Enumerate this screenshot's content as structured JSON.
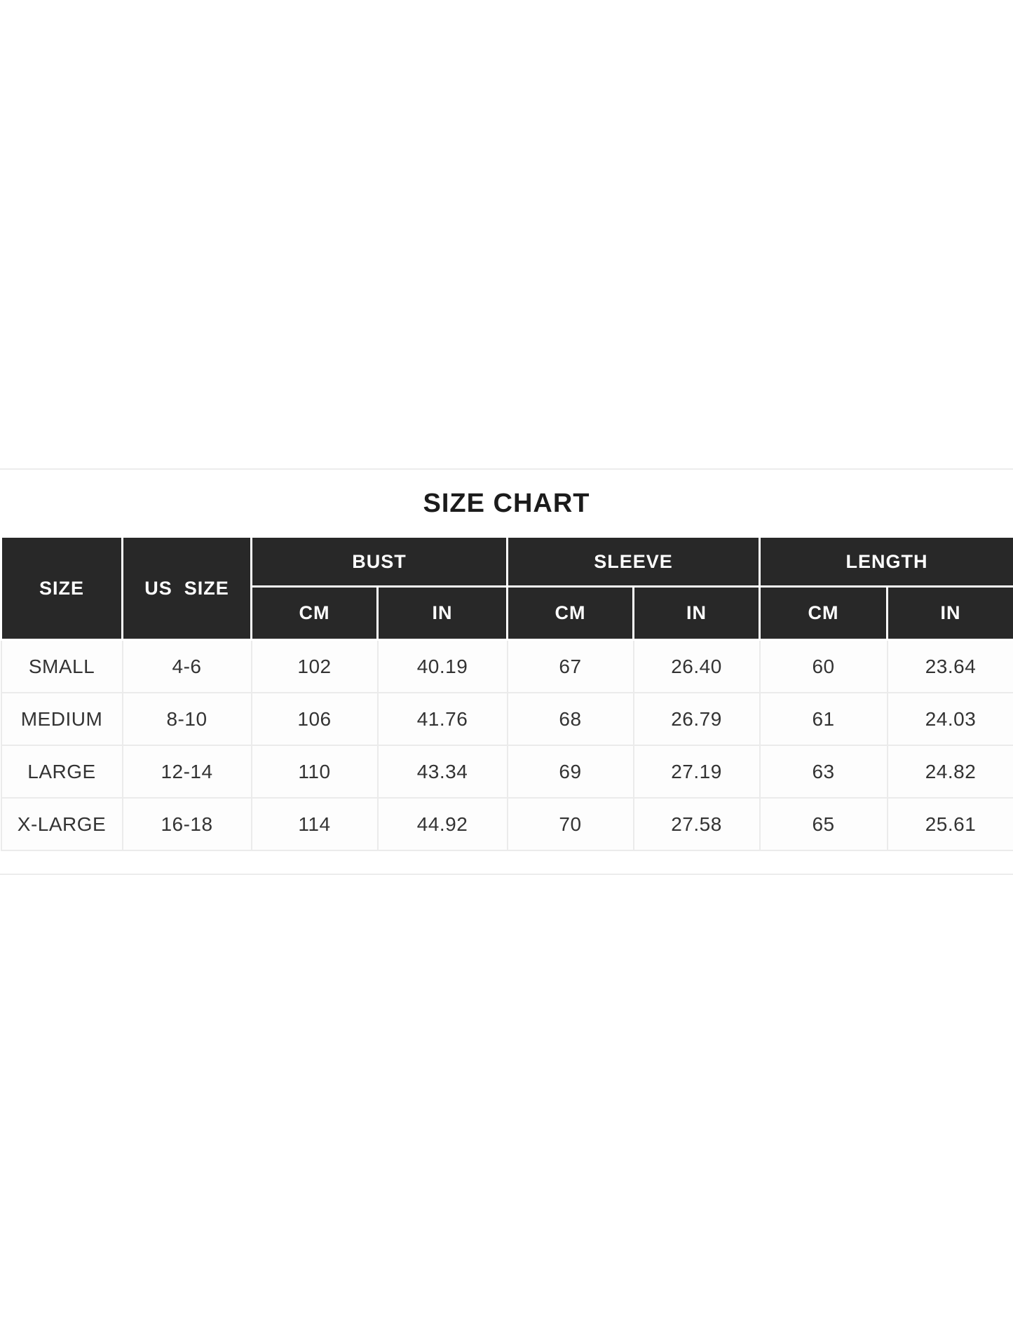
{
  "page": {
    "title": "SIZE CHART"
  },
  "colors": {
    "header_bg": "#282828",
    "header_text": "#ffffff",
    "body_text": "#333333",
    "grid_line": "#ebebeb",
    "divider_line": "#ececec",
    "page_bg": "#ffffff"
  },
  "table": {
    "group_headers": {
      "size": "SIZE",
      "us_size": "US  SIZE",
      "bust": "BUST",
      "sleeve": "SLEEVE",
      "length": "LENGTH"
    },
    "unit_headers": [
      "CM",
      "IN",
      "CM",
      "IN",
      "CM",
      "IN"
    ],
    "rows": [
      {
        "size": "SMALL",
        "us_size": "4-6",
        "bust_cm": "102",
        "bust_in": "40.19",
        "sleeve_cm": "67",
        "sleeve_in": "26.40",
        "length_cm": "60",
        "length_in": "23.64"
      },
      {
        "size": "MEDIUM",
        "us_size": "8-10",
        "bust_cm": "106",
        "bust_in": "41.76",
        "sleeve_cm": "68",
        "sleeve_in": "26.79",
        "length_cm": "61",
        "length_in": "24.03"
      },
      {
        "size": "LARGE",
        "us_size": "12-14",
        "bust_cm": "110",
        "bust_in": "43.34",
        "sleeve_cm": "69",
        "sleeve_in": "27.19",
        "length_cm": "63",
        "length_in": "24.82"
      },
      {
        "size": "X-LARGE",
        "us_size": "16-18",
        "bust_cm": "114",
        "bust_in": "44.92",
        "sleeve_cm": "70",
        "sleeve_in": "27.58",
        "length_cm": "65",
        "length_in": "25.61"
      }
    ]
  },
  "chart_data": {
    "type": "table",
    "title": "SIZE CHART",
    "columns": [
      "SIZE",
      "US SIZE",
      "BUST CM",
      "BUST IN",
      "SLEEVE CM",
      "SLEEVE IN",
      "LENGTH CM",
      "LENGTH IN"
    ],
    "rows": [
      [
        "SMALL",
        "4-6",
        102,
        40.19,
        67,
        26.4,
        60,
        23.64
      ],
      [
        "MEDIUM",
        "8-10",
        106,
        41.76,
        68,
        26.79,
        61,
        24.03
      ],
      [
        "LARGE",
        "12-14",
        110,
        43.34,
        69,
        27.19,
        63,
        24.82
      ],
      [
        "X-LARGE",
        "16-18",
        114,
        44.92,
        70,
        27.58,
        65,
        25.61
      ]
    ],
    "layout": {
      "header_rows": 2,
      "grouped_columns": [
        "BUST",
        "SLEEVE",
        "LENGTH"
      ],
      "units": [
        "CM",
        "IN"
      ]
    }
  }
}
